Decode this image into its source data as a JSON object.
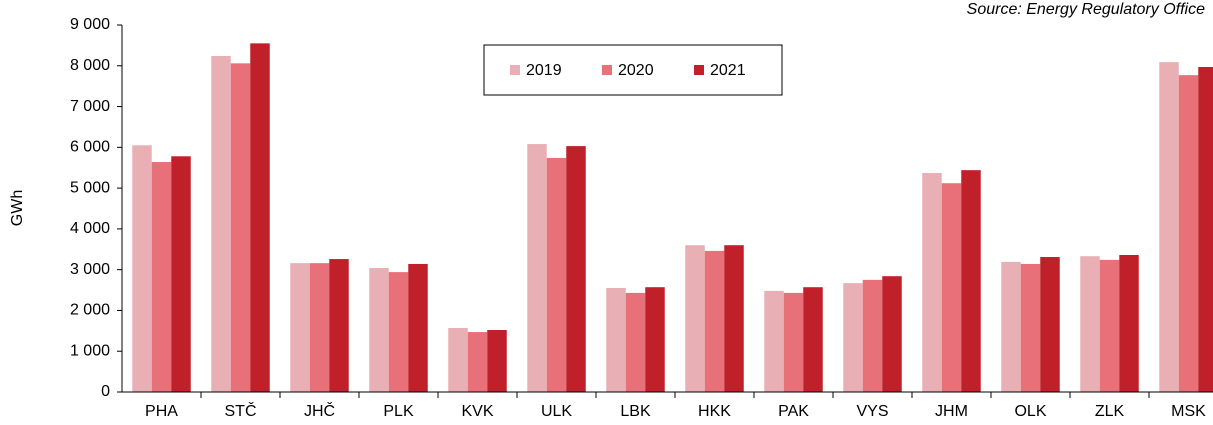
{
  "chart_data": {
    "type": "bar",
    "source": "Source: Energy Regulatory Office",
    "y_label": "GWh",
    "categories": [
      "PHA",
      "STČ",
      "JHČ",
      "PLK",
      "KVK",
      "ULK",
      "LBK",
      "HKK",
      "PAK",
      "VYS",
      "JHM",
      "OLK",
      "ZLK",
      "MSK"
    ],
    "series": [
      {
        "name": "2019",
        "color": "#e8b0b4",
        "values": [
          6050,
          8240,
          3160,
          3040,
          1570,
          6080,
          2550,
          3600,
          2480,
          2670,
          5370,
          3190,
          3330,
          8090
        ]
      },
      {
        "name": "2020",
        "color": "#e87078",
        "values": [
          5640,
          8060,
          3160,
          2940,
          1470,
          5740,
          2430,
          3460,
          2430,
          2750,
          5120,
          3140,
          3240,
          7770
        ]
      },
      {
        "name": "2021",
        "color": "#c0202a",
        "values": [
          5780,
          8550,
          3260,
          3140,
          1520,
          6030,
          2570,
          3600,
          2570,
          2840,
          5440,
          3310,
          3360,
          7970
        ]
      }
    ],
    "ylim": [
      0,
      9000
    ],
    "yticks": [
      0,
      {
        "value": 1000,
        "label": "1 000"
      },
      {
        "value": 2000,
        "label": "2 000"
      },
      {
        "value": 3000,
        "label": "3 000"
      },
      {
        "value": 4000,
        "label": "4 000"
      },
      {
        "value": 5000,
        "label": "5 000"
      },
      {
        "value": 6000,
        "label": "6 000"
      },
      {
        "value": 7000,
        "label": "7 000"
      },
      {
        "value": 8000,
        "label": "8 000"
      },
      {
        "value": 9000,
        "label": "9 000"
      }
    ],
    "legend": "top"
  }
}
